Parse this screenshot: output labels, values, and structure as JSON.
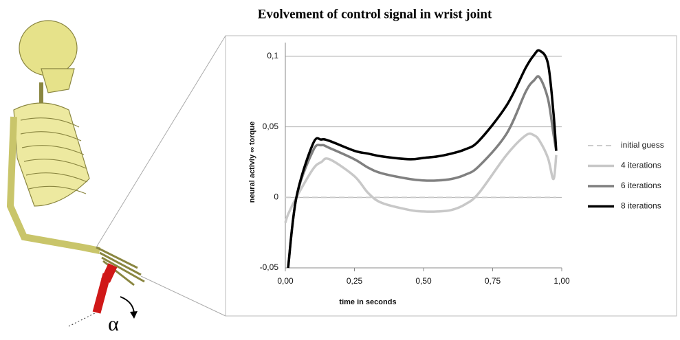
{
  "chart_data": {
    "type": "line",
    "title": "Evolvement of control signal in wrist joint",
    "x_label": "time in seconds",
    "y_label": "neural activiy ∞ torque",
    "illustration_label": "α",
    "x": [
      0,
      0.01,
      0.04,
      0.1,
      0.13,
      0.16,
      0.25,
      0.3,
      0.35,
      0.45,
      0.5,
      0.55,
      0.6,
      0.65,
      0.7,
      0.8,
      0.87,
      0.9,
      0.92,
      0.95,
      0.97,
      0.98
    ],
    "series": [
      {
        "name": "initial guess",
        "color": "#cccccc",
        "dashed": true,
        "values": [
          0,
          0,
          0,
          0,
          0,
          0,
          0,
          0,
          0,
          0,
          0,
          0,
          0,
          0,
          0,
          0,
          0,
          0,
          0,
          0,
          0,
          0
        ]
      },
      {
        "name": "4 iterations",
        "color": "#c8c8c8",
        "values": [
          -0.018,
          -0.012,
          0,
          0.02,
          0.025,
          0.027,
          0.015,
          0.003,
          -0.004,
          -0.009,
          -0.01,
          -0.01,
          -0.009,
          -0.005,
          0.003,
          0.03,
          0.044,
          0.044,
          0.04,
          0.028,
          0.013,
          0.03
        ]
      },
      {
        "name": "6 iterations",
        "color": "#808080",
        "values": [
          null,
          -0.05,
          0,
          0.033,
          0.037,
          0.035,
          0.027,
          0.021,
          0.017,
          0.013,
          0.012,
          0.012,
          0.013,
          0.016,
          0.022,
          0.045,
          0.075,
          0.083,
          0.085,
          0.07,
          0.045,
          0.033
        ]
      },
      {
        "name": "8 iterations",
        "color": "#000000",
        "values": [
          null,
          -0.05,
          0,
          0.038,
          0.041,
          0.04,
          0.033,
          0.031,
          0.029,
          0.027,
          0.028,
          0.029,
          0.031,
          0.034,
          0.04,
          0.065,
          0.092,
          0.101,
          0.104,
          0.095,
          0.06,
          0.033
        ]
      }
    ],
    "xlim": [
      0,
      1
    ],
    "xticks": [
      {
        "value": 0,
        "label": "0,00"
      },
      {
        "value": 0.25,
        "label": "0,25"
      },
      {
        "value": 0.5,
        "label": "0,50"
      },
      {
        "value": 0.75,
        "label": "0,75"
      },
      {
        "value": 1,
        "label": "1,00"
      }
    ],
    "ylim": [
      -0.05,
      0.1
    ],
    "yticks": [
      {
        "value": -0.05,
        "label": "-0,05"
      },
      0,
      {
        "value": 0.05,
        "label": "0,05"
      },
      {
        "value": 0.1,
        "label": "0,1"
      }
    ],
    "grid": true,
    "legend": "right"
  }
}
